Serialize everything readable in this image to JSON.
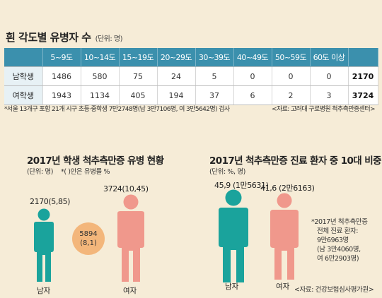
{
  "table": {
    "title": "흰 각도별 유병자 수",
    "unit": "(단위: 명)",
    "columns": [
      "5~9도",
      "10~14도",
      "15~19도",
      "20~29도",
      "30~39도",
      "40~49도",
      "50~59도",
      "60도 이상"
    ],
    "rows": [
      {
        "label": "남학생",
        "values": [
          "1486",
          "580",
          "75",
          "24",
          "5",
          "0",
          "0",
          "0"
        ],
        "total": "2170"
      },
      {
        "label": "여학생",
        "values": [
          "1943",
          "1134",
          "405",
          "194",
          "37",
          "6",
          "2",
          "3"
        ],
        "total": "3724"
      }
    ],
    "footnote": "*서울 13개구 포함 21개 시구 초등·중학생 7만2748명(남 3만7106명, 여 3만5642명) 검사",
    "source": "<자료: 고려대 구로병원 척추측만증센터>"
  },
  "chart_data": [
    {
      "type": "pictogram",
      "title": "2017년 학생 척추측만증 유병 현황",
      "subtitle": "(단위: 명)",
      "subtitle2": "*( )안은 유병률 %",
      "categories": [
        "남자",
        "여자"
      ],
      "values": [
        2170,
        3724
      ],
      "rates": [
        5.85,
        10.45
      ],
      "value_labels": [
        "2170(5,85)",
        "3724(10,45)"
      ],
      "total": {
        "value": 5894,
        "rate": 8.1,
        "label_value": "5894",
        "label_rate": "(8,1)"
      }
    },
    {
      "type": "pictogram",
      "title": "2017년 척추측만증 진료 환자 중 10대 비중",
      "subtitle": "(단위: %, 명)",
      "categories": [
        "남자",
        "여자"
      ],
      "values": [
        45.9,
        41.6
      ],
      "counts": [
        15631,
        26163
      ],
      "value_labels": [
        "45,9 (1만5631)",
        "41,6 (2만6163)"
      ],
      "note": [
        "*2017년 척추측만증",
        "전체 진료 환자:",
        "9만6963명",
        "(남 3만4060명,",
        "여 6만2903명)"
      ],
      "source": "<자료: 건강보험심사평가원>"
    }
  ],
  "colors": {
    "male": "#1aa39c",
    "female": "#f0988c",
    "total": "#f3b67b",
    "header": "#3b90ad"
  }
}
